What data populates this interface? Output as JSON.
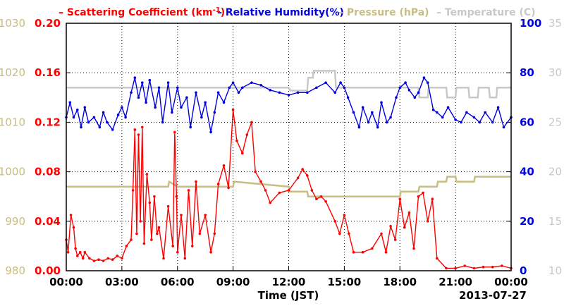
{
  "chart_data": {
    "type": "line",
    "xlabel": "Time (JST)",
    "date_label": "2013-07-27",
    "x_ticks": [
      "00:00",
      "03:00",
      "06:00",
      "09:00",
      "12:00",
      "15:00",
      "18:00",
      "21:00",
      "00:00"
    ],
    "xlim_hours": [
      0,
      24
    ],
    "grid": true,
    "legend_position": "top",
    "legend": [
      {
        "label": "Scattering Coefficient (km",
        "sup": "-1",
        "tail": ")",
        "color": "#ff0000"
      },
      {
        "label": "Relative Humidity(%)",
        "color": "#0000e0"
      },
      {
        "label": "Pressure (hPa)",
        "color": "#c8bd82"
      },
      {
        "label": "Temperature (C)",
        "color": "#c8c8c8"
      }
    ],
    "axes": {
      "scattering": {
        "ticks": [
          "0.20",
          "0.16",
          "0.12",
          "0.08",
          "0.04",
          "0.00"
        ],
        "ylim": [
          0.0,
          0.2
        ],
        "color": "#ff0000",
        "side": "left-inner"
      },
      "pressure": {
        "ticks": [
          "1030",
          "1020",
          "1010",
          "1000",
          "990",
          "980"
        ],
        "ylim": [
          980,
          1030
        ],
        "color": "#c8bd82",
        "side": "left-outer"
      },
      "humidity": {
        "ticks": [
          "100",
          "80",
          "60",
          "40",
          "20",
          "0"
        ],
        "ylim": [
          0,
          100
        ],
        "color": "#0000e0",
        "side": "right-inner"
      },
      "temperature": {
        "ticks": [
          "35",
          "30",
          "25",
          "20",
          "15",
          "10"
        ],
        "ylim": [
          10,
          35
        ],
        "color": "#c8c8c8",
        "side": "right-outer"
      }
    },
    "series": [
      {
        "name": "Scattering Coefficient",
        "color": "#ff0000",
        "axis": "scattering",
        "marker": true,
        "x": [
          0,
          0.1,
          0.25,
          0.4,
          0.5,
          0.6,
          0.75,
          0.9,
          1.0,
          1.25,
          1.5,
          1.75,
          2.0,
          2.25,
          2.5,
          2.75,
          3.0,
          3.25,
          3.5,
          3.6,
          3.7,
          3.8,
          3.9,
          4.0,
          4.1,
          4.2,
          4.35,
          4.5,
          4.6,
          4.75,
          4.9,
          5.0,
          5.25,
          5.5,
          5.75,
          5.85,
          5.95,
          6.0,
          6.2,
          6.4,
          6.6,
          6.8,
          7.0,
          7.2,
          7.5,
          7.8,
          8.0,
          8.2,
          8.5,
          8.75,
          9.0,
          9.2,
          9.5,
          9.75,
          10.0,
          10.2,
          10.5,
          10.75,
          11.0,
          11.5,
          12.0,
          12.5,
          12.75,
          13.0,
          13.25,
          13.5,
          13.75,
          14.0,
          14.5,
          14.75,
          15.0,
          15.25,
          15.5,
          16.0,
          16.5,
          17.0,
          17.25,
          17.5,
          17.75,
          18.0,
          18.25,
          18.5,
          18.75,
          19.0,
          19.25,
          19.5,
          19.75,
          20.0,
          20.5,
          21.0,
          21.5,
          22.0,
          22.5,
          23.0,
          23.5,
          24.0
        ],
        "y": [
          0.025,
          0.015,
          0.045,
          0.035,
          0.018,
          0.012,
          0.015,
          0.01,
          0.015,
          0.01,
          0.008,
          0.009,
          0.008,
          0.01,
          0.009,
          0.012,
          0.01,
          0.02,
          0.025,
          0.065,
          0.114,
          0.03,
          0.11,
          0.04,
          0.116,
          0.022,
          0.078,
          0.055,
          0.025,
          0.06,
          0.03,
          0.035,
          0.01,
          0.052,
          0.02,
          0.112,
          0.06,
          0.015,
          0.045,
          0.01,
          0.065,
          0.02,
          0.072,
          0.03,
          0.045,
          0.015,
          0.03,
          0.07,
          0.085,
          0.067,
          0.13,
          0.105,
          0.095,
          0.11,
          0.12,
          0.08,
          0.072,
          0.065,
          0.055,
          0.063,
          0.065,
          0.075,
          0.082,
          0.077,
          0.065,
          0.058,
          0.06,
          0.056,
          0.04,
          0.03,
          0.045,
          0.03,
          0.015,
          0.015,
          0.018,
          0.03,
          0.015,
          0.036,
          0.025,
          0.058,
          0.035,
          0.047,
          0.018,
          0.06,
          0.063,
          0.04,
          0.058,
          0.01,
          0.002,
          0.002,
          0.004,
          0.002,
          0.003,
          0.003,
          0.004,
          0.002
        ]
      },
      {
        "name": "Relative Humidity",
        "color": "#0000e0",
        "axis": "humidity",
        "marker": true,
        "x": [
          0,
          0.2,
          0.4,
          0.6,
          0.8,
          1.0,
          1.2,
          1.5,
          1.8,
          2.0,
          2.2,
          2.5,
          2.8,
          3.0,
          3.2,
          3.5,
          3.7,
          3.9,
          4.1,
          4.3,
          4.5,
          4.8,
          5.0,
          5.2,
          5.5,
          5.7,
          6.0,
          6.2,
          6.5,
          6.7,
          7.0,
          7.3,
          7.5,
          7.8,
          8.0,
          8.2,
          8.5,
          8.8,
          9.0,
          9.3,
          9.5,
          10.0,
          10.5,
          11.0,
          11.5,
          12.0,
          12.5,
          13.0,
          13.5,
          14.0,
          14.5,
          14.8,
          15.0,
          15.2,
          15.5,
          15.8,
          16.0,
          16.3,
          16.5,
          16.8,
          17.0,
          17.3,
          17.5,
          17.8,
          18.0,
          18.3,
          18.5,
          18.8,
          19.0,
          19.3,
          19.5,
          19.8,
          20.0,
          20.3,
          20.6,
          21.0,
          21.3,
          21.6,
          22.0,
          22.3,
          22.6,
          23.0,
          23.3,
          23.6,
          24.0
        ],
        "y": [
          62,
          68,
          62,
          65,
          58,
          66,
          60,
          62,
          58,
          64,
          60,
          57,
          63,
          66,
          62,
          72,
          78,
          70,
          76,
          68,
          77,
          66,
          74,
          60,
          76,
          64,
          74,
          66,
          70,
          58,
          72,
          62,
          68,
          56,
          64,
          72,
          68,
          74,
          76,
          72,
          74,
          76,
          75,
          73,
          72,
          71,
          72,
          72,
          74,
          76,
          72,
          76,
          74,
          70,
          64,
          58,
          66,
          60,
          64,
          58,
          68,
          60,
          62,
          70,
          74,
          76,
          73,
          70,
          72,
          78,
          76,
          65,
          64,
          62,
          66,
          61,
          60,
          64,
          62,
          60,
          64,
          60,
          66,
          58,
          62
        ]
      },
      {
        "name": "Pressure",
        "color": "#c8bd82",
        "axis": "pressure",
        "x": [
          0,
          5.5,
          5.55,
          6.0,
          9.0,
          9.05,
          12.0,
          12.05,
          13.0,
          13.05,
          14.5,
          14.55,
          18.0,
          18.05,
          19.0,
          19.05,
          20.0,
          20.05,
          20.5,
          20.55,
          21.0,
          21.05,
          22.0,
          22.05,
          23.0,
          23.05,
          24.0
        ],
        "y": [
          997,
          997,
          998,
          997,
          997,
          998,
          997,
          996,
          996,
          995,
          995,
          995,
          995,
          996,
          996,
          997,
          997,
          998,
          998,
          999,
          999,
          998,
          998,
          999,
          999,
          999,
          999
        ]
      },
      {
        "name": "Temperature",
        "color": "#c8c8c8",
        "axis": "temperature",
        "x": [
          0,
          12.0,
          12.1,
          13.0,
          13.05,
          13.3,
          13.35,
          14.5,
          14.55,
          15.0,
          15.05,
          19.0,
          19.05,
          19.5,
          19.55,
          20.5,
          20.55,
          21.0,
          21.05,
          21.7,
          21.75,
          22.2,
          22.25,
          22.8,
          22.85,
          23.2,
          23.25,
          24.0
        ],
        "y": [
          28.5,
          28.5,
          28.2,
          28.2,
          29.5,
          29.5,
          30.2,
          30.2,
          28.5,
          28.5,
          28.5,
          28.5,
          27.5,
          27.5,
          28.5,
          28.5,
          27.5,
          27.5,
          28.5,
          28.5,
          27.5,
          27.5,
          28.5,
          28.5,
          27.5,
          27.5,
          28.5,
          28.5
        ]
      }
    ]
  }
}
